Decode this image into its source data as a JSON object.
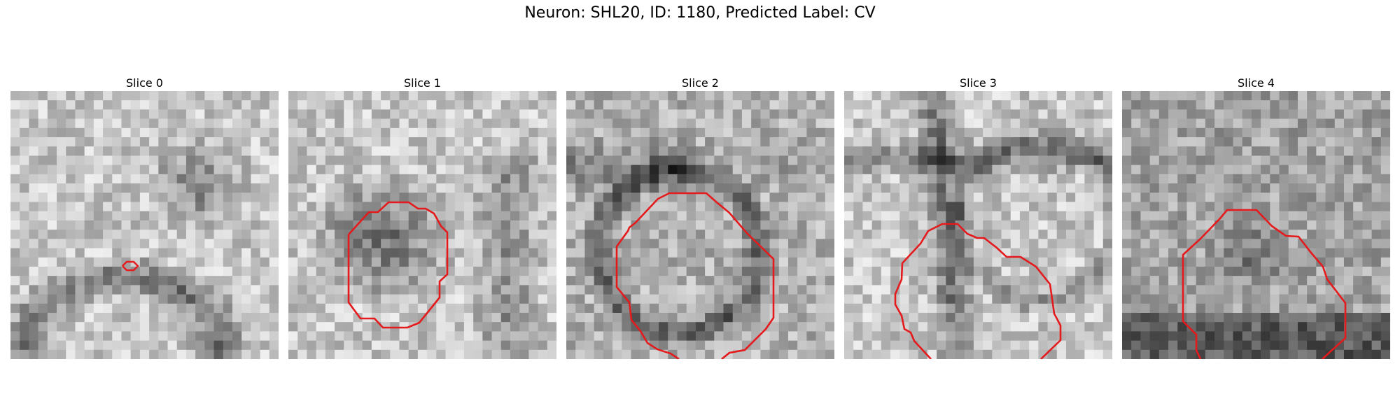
{
  "figure": {
    "title": "Neuron: SHL20, ID: 1180, Predicted Label: CV",
    "contour_color": "#e41a1c"
  },
  "panels": [
    {
      "title": "Slice 0",
      "seed": 11,
      "darkness": "membrane-arc"
    },
    {
      "title": "Slice 1",
      "seed": 23,
      "darkness": "left-blob"
    },
    {
      "title": "Slice 2",
      "seed": 37,
      "darkness": "ring"
    },
    {
      "title": "Slice 3",
      "seed": 41,
      "darkness": "cross"
    },
    {
      "title": "Slice 4",
      "seed": 59,
      "darkness": "noisy"
    }
  ]
}
